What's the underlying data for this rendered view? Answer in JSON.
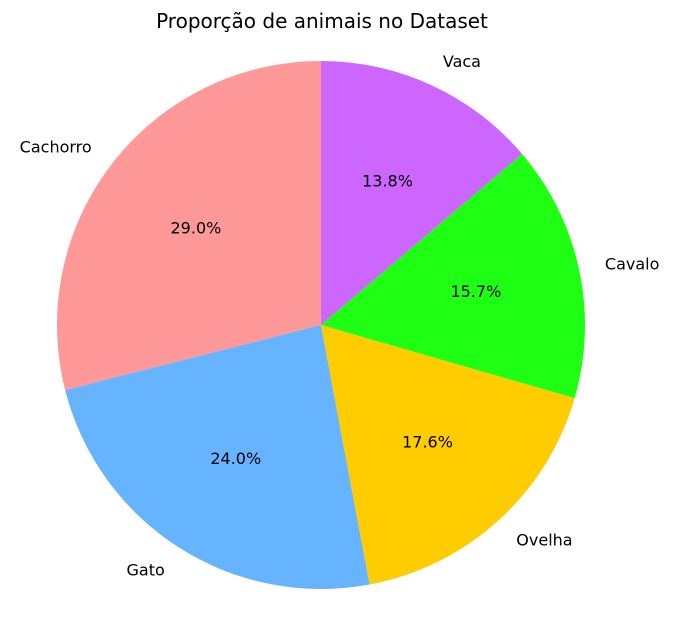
{
  "chart_data": {
    "type": "pie",
    "title": "Proporção de animais no Dataset",
    "categories": [
      "Cachorro",
      "Gato",
      "Ovelha",
      "Cavalo",
      "Vaca"
    ],
    "values": [
      29.0,
      24.0,
      17.6,
      15.7,
      13.8
    ],
    "value_labels": [
      "29.0%",
      "24.0%",
      "17.6%",
      "15.7%",
      "13.8%"
    ],
    "colors": [
      "#ff9999",
      "#66b3ff",
      "#ffcc00",
      "#1fff13",
      "#cc66ff"
    ],
    "start_angle_deg": 90,
    "direction": "counterclockwise",
    "legend": "none"
  }
}
